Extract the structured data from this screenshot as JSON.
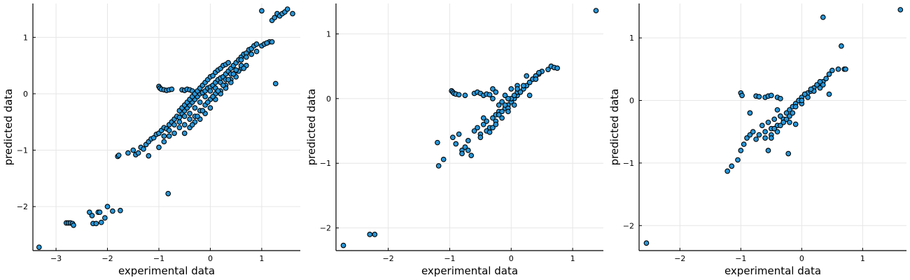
{
  "chart_data": [
    {
      "type": "scatter",
      "xlabel": "experimental data",
      "ylabel": "predicted data",
      "xlim": [
        -3.45,
        1.75
      ],
      "ylim": [
        -2.78,
        1.6
      ],
      "xticks": [
        -3,
        -2,
        -1,
        0,
        1
      ],
      "yticks": [
        -2,
        -1,
        0,
        1
      ],
      "xtick_labels": [
        "−3",
        "−2",
        "−1",
        "0",
        "1"
      ],
      "ytick_labels": [
        "−2",
        "−1",
        "0",
        "1"
      ],
      "grid": true,
      "marker_color": "#2896d8",
      "series": [
        {
          "x": [
            -3.33,
            -2.8,
            -2.76,
            -2.72,
            -2.68,
            -2.66,
            -2.35,
            -2.28,
            -2.3,
            -2.22,
            -2.18,
            -2.15,
            -2.12,
            -2.05,
            -2.0,
            -1.9,
            -1.75,
            -1.8,
            -1.78,
            -0.82,
            1.27,
            -1.6,
            -1.5,
            -1.45,
            -1.4,
            -1.35,
            -1.3,
            -1.25,
            -1.2,
            -1.15,
            -1.1,
            -1.05,
            -1.0,
            -0.95,
            -0.9,
            -0.85,
            -0.8,
            -0.75,
            -0.7,
            -0.65,
            -0.6,
            -0.55,
            -0.5,
            -0.45,
            -0.4,
            -0.35,
            -0.3,
            -0.25,
            -0.2,
            -0.15,
            -0.1,
            -0.05,
            0.0,
            0.05,
            0.1,
            0.15,
            0.2,
            0.25,
            0.3,
            0.35,
            0.4,
            0.45,
            0.5,
            0.55,
            0.6,
            0.65,
            0.7,
            0.75,
            0.8,
            0.85,
            -1.2,
            -1.0,
            -0.9,
            -0.8,
            -0.7,
            -0.6,
            -0.5,
            -0.4,
            -0.3,
            -0.2,
            -0.1,
            0.0,
            0.1,
            0.2,
            0.3,
            0.4,
            0.5,
            0.6,
            0.7,
            -0.9,
            -0.8,
            -0.7,
            -0.6,
            -0.5,
            -0.4,
            -0.3,
            -0.2,
            -0.1,
            0.0,
            0.1,
            0.2,
            0.3,
            0.4,
            0.5,
            -1.0,
            -0.98,
            -0.95,
            -0.9,
            -0.85,
            -0.8,
            -0.75,
            -0.55,
            -0.5,
            -0.45,
            -0.4,
            -0.35,
            -0.6,
            -0.55,
            -0.5,
            -0.45,
            -0.4,
            -0.35,
            -0.3,
            -0.25,
            -0.2,
            -0.15,
            -0.1,
            -0.05,
            0.0,
            0.05,
            0.1,
            0.15,
            0.2,
            0.25,
            0.3,
            0.35,
            -0.4,
            -0.3,
            -0.2,
            -0.1,
            0.0,
            0.1,
            0.2,
            0.3,
            0.4,
            -0.5,
            -0.35,
            -0.25,
            -0.15,
            -0.05,
            0.05,
            0.15,
            0.25,
            0.35,
            0.6,
            0.7,
            0.8,
            0.9,
            1.0,
            1.05,
            1.1,
            1.15,
            1.2,
            1.25,
            1.3,
            1.35,
            1.4,
            1.45,
            1.5,
            1.6,
            0.9,
            1.0,
            1.1,
            1.2,
            0.55,
            0.5,
            0.45,
            0.6,
            0.65
          ],
          "y": [
            -2.72,
            -2.29,
            -2.29,
            -2.29,
            -2.3,
            -2.33,
            -2.1,
            -2.3,
            -2.16,
            -2.3,
            -2.1,
            -2.1,
            -2.28,
            -2.2,
            -2.0,
            -2.08,
            -2.07,
            -1.11,
            -1.09,
            -1.77,
            0.18,
            -1.05,
            -1.0,
            -1.08,
            -1.05,
            -0.95,
            -0.98,
            -0.9,
            -0.85,
            -0.8,
            -0.78,
            -0.72,
            -0.7,
            -0.65,
            -0.6,
            -0.62,
            -0.55,
            -0.5,
            -0.45,
            -0.4,
            -0.42,
            -0.35,
            -0.3,
            -0.25,
            -0.2,
            -0.15,
            -0.1,
            -0.05,
            0.0,
            0.02,
            0.05,
            0.1,
            0.12,
            0.15,
            0.2,
            0.25,
            0.28,
            0.3,
            0.35,
            0.4,
            0.45,
            0.5,
            0.55,
            0.6,
            0.65,
            0.7,
            0.72,
            0.78,
            0.8,
            0.85,
            -1.1,
            -0.95,
            -0.85,
            -0.75,
            -0.7,
            -0.6,
            -0.55,
            -0.45,
            -0.4,
            -0.3,
            -0.2,
            -0.1,
            0.0,
            0.05,
            0.15,
            0.25,
            0.3,
            0.45,
            0.5,
            -0.75,
            -0.65,
            -0.55,
            -0.5,
            -0.4,
            -0.35,
            -0.25,
            -0.15,
            -0.05,
            0.05,
            0.1,
            0.2,
            0.25,
            0.35,
            0.4,
            0.13,
            0.1,
            0.08,
            0.07,
            0.06,
            0.07,
            0.08,
            0.07,
            0.06,
            0.08,
            0.07,
            0.05,
            -0.3,
            -0.25,
            -0.2,
            -0.15,
            -0.1,
            -0.05,
            0.0,
            0.05,
            0.1,
            0.15,
            0.2,
            0.25,
            0.3,
            0.32,
            0.38,
            0.42,
            0.45,
            0.5,
            0.52,
            0.55,
            -0.6,
            -0.5,
            -0.45,
            -0.35,
            -0.25,
            -0.1,
            0.0,
            0.1,
            0.2,
            -0.7,
            -0.55,
            -0.4,
            -0.3,
            -0.15,
            -0.05,
            0.05,
            0.15,
            0.25,
            0.6,
            0.65,
            0.7,
            0.75,
            0.85,
            0.88,
            0.9,
            0.92,
            1.3,
            1.35,
            1.42,
            1.38,
            1.42,
            1.45,
            1.5,
            1.42,
            0.88,
            1.47,
            0.9,
            0.92,
            0.4,
            0.42,
            0.35,
            0.5,
            0.45
          ]
        }
      ]
    },
    {
      "type": "scatter",
      "xlabel": "experimental data",
      "ylabel": "predicted data",
      "xlim": [
        -2.85,
        1.5
      ],
      "ylim": [
        -2.35,
        1.47
      ],
      "xticks": [
        -2,
        -1,
        0,
        1
      ],
      "yticks": [
        -2,
        -1,
        0,
        1
      ],
      "xtick_labels": [
        "−2",
        "−1",
        "0",
        "1"
      ],
      "ytick_labels": [
        "−2",
        "−1",
        "0",
        "1"
      ],
      "grid": true,
      "marker_color": "#2896d8",
      "series": [
        {
          "x": [
            -2.73,
            -2.3,
            -2.22,
            1.38,
            -1.2,
            -1.1,
            -1.18,
            -0.97,
            -0.95,
            -0.93,
            -0.9,
            -0.85,
            -0.75,
            -0.6,
            -0.55,
            -0.5,
            -0.45,
            -0.4,
            -0.35,
            -0.3,
            -0.25,
            -0.95,
            -0.9,
            -0.85,
            -0.8,
            -0.75,
            -0.7,
            -0.6,
            -0.55,
            -0.5,
            -0.45,
            -0.4,
            -0.35,
            -0.3,
            -0.25,
            -0.2,
            -0.15,
            -0.1,
            -0.05,
            0.0,
            0.05,
            0.1,
            0.15,
            0.2,
            0.25,
            0.3,
            0.35,
            0.4,
            0.45,
            0.5,
            0.6,
            0.65,
            0.7,
            0.75,
            -0.8,
            -0.7,
            -0.65,
            -0.5,
            -0.4,
            -0.35,
            -0.3,
            -0.25,
            -0.2,
            -0.15,
            -0.1,
            -0.05,
            0.0,
            0.05,
            0.1,
            0.2,
            0.3,
            0.35,
            0.4,
            -0.3,
            -0.2,
            -0.1,
            0.0,
            0.1,
            -0.15,
            -0.05,
            0.05,
            0.15,
            0.3,
            0.4,
            -0.45,
            -0.25,
            -0.05,
            0.1,
            0.25,
            0.45
          ],
          "y": [
            -2.27,
            -2.1,
            -2.1,
            1.36,
            -0.68,
            -0.94,
            -1.04,
            0.12,
            0.1,
            0.08,
            0.07,
            0.06,
            0.05,
            0.08,
            0.1,
            0.08,
            0.05,
            0.07,
            0.06,
            0.15,
            0.1,
            -0.6,
            -0.7,
            -0.55,
            -0.8,
            -0.75,
            -0.65,
            -0.5,
            -0.45,
            -0.55,
            -0.4,
            -0.35,
            -0.45,
            -0.3,
            -0.25,
            -0.2,
            -0.3,
            -0.15,
            -0.1,
            -0.05,
            0.0,
            0.05,
            0.1,
            0.15,
            0.2,
            0.25,
            0.3,
            0.35,
            0.38,
            0.42,
            0.45,
            0.5,
            0.48,
            0.47,
            -0.85,
            -0.8,
            -0.88,
            -0.6,
            -0.5,
            -0.52,
            -0.45,
            -0.35,
            -0.25,
            -0.2,
            -0.1,
            -0.15,
            0.0,
            0.05,
            0.1,
            0.2,
            0.25,
            0.3,
            0.35,
            0.0,
            -0.1,
            0.05,
            0.15,
            0.2,
            -0.05,
            -0.2,
            -0.1,
            0.1,
            0.05,
            0.3,
            -0.3,
            -0.4,
            0.0,
            0.15,
            0.35,
            0.4
          ]
        }
      ]
    },
    {
      "type": "scatter",
      "xlabel": "experimental data",
      "ylabel": "predicted data",
      "xlim": [
        -2.67,
        1.72
      ],
      "ylim": [
        -2.4,
        1.55
      ],
      "xticks": [
        -2,
        -1,
        0,
        1
      ],
      "yticks": [
        -2,
        -1,
        0,
        1
      ],
      "xtick_labels": [
        "−2",
        "−1",
        "0",
        "1"
      ],
      "ytick_labels": [
        "−2",
        "−1",
        "0",
        "1"
      ],
      "grid": true,
      "marker_color": "#2896d8",
      "series": [
        {
          "x": [
            -2.55,
            1.62,
            0.35,
            0.65,
            -1.22,
            -1.15,
            -1.05,
            -1.0,
            -0.95,
            -0.9,
            -0.85,
            -1.0,
            -0.98,
            -0.75,
            -0.7,
            -0.6,
            -0.55,
            -0.5,
            -0.4,
            -0.35,
            -0.8,
            -0.75,
            -0.7,
            -0.65,
            -0.6,
            -0.55,
            -0.5,
            -0.45,
            -0.4,
            -0.35,
            -0.3,
            -0.25,
            -0.2,
            -0.15,
            -0.1,
            -0.05,
            0.0,
            0.05,
            0.1,
            0.15,
            0.2,
            0.25,
            0.3,
            0.35,
            0.4,
            0.45,
            0.5,
            0.6,
            0.7,
            0.72,
            -0.5,
            -0.45,
            -0.4,
            -0.3,
            -0.25,
            -0.2,
            -0.15,
            -0.1,
            0.0,
            0.1,
            0.2,
            0.3,
            0.35,
            -0.6,
            -0.5,
            -0.45,
            -0.35,
            -0.3,
            -0.2,
            -0.1,
            0.0,
            0.05,
            0.15,
            0.25,
            0.3,
            0.45,
            -0.85,
            -0.55,
            -0.4,
            -0.22
          ],
          "y": [
            -2.28,
            1.45,
            1.33,
            0.87,
            -1.13,
            -1.05,
            -0.95,
            -0.8,
            -0.7,
            -0.6,
            -0.55,
            0.12,
            0.08,
            0.07,
            0.06,
            0.05,
            0.07,
            0.08,
            0.05,
            0.03,
            -0.5,
            -0.62,
            -0.55,
            -0.4,
            -0.5,
            -0.35,
            -0.45,
            -0.3,
            -0.4,
            -0.25,
            -0.3,
            -0.2,
            -0.15,
            -0.1,
            -0.05,
            0.0,
            0.05,
            0.1,
            0.12,
            0.15,
            0.2,
            0.25,
            0.28,
            0.3,
            0.35,
            0.42,
            0.48,
            0.5,
            0.5,
            0.5,
            -0.55,
            -0.45,
            -0.5,
            -0.35,
            -0.3,
            -0.25,
            -0.2,
            -0.1,
            -0.05,
            0.05,
            0.15,
            0.2,
            0.25,
            -0.6,
            -0.6,
            -0.45,
            -0.4,
            -0.35,
            -0.35,
            -0.38,
            0.0,
            0.1,
            0.18,
            0.25,
            0.3,
            0.1,
            -0.2,
            -0.8,
            -0.15,
            -0.85
          ]
        }
      ]
    }
  ]
}
